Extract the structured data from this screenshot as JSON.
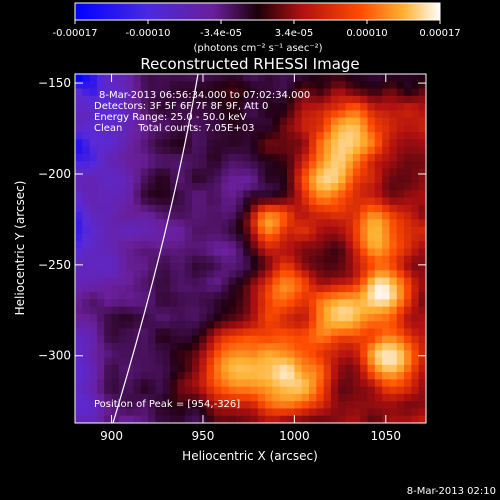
{
  "colorbar": {
    "tick_labels": [
      "-0.00017",
      "-0.00010",
      "-3.4e-05",
      "3.4e-05",
      "0.00010",
      "0.00017"
    ],
    "unit_label": "(photons cm⁻² s⁻¹ asec⁻²)",
    "range": [
      -0.00017,
      0.00017
    ],
    "colors": [
      "#0000ff",
      "#5a2ad8",
      "#6a1f9a",
      "#200010",
      "#b01010",
      "#ff4a00",
      "#ffb030",
      "#ffffff"
    ]
  },
  "title": "Reconstructed RHESSI Image",
  "info": {
    "line1": "8-Mar-2013 06:56:34.000 to 07:02:34.000",
    "line2": "Detectors: 3F 5F 6F 7F 8F 9F, Att 0",
    "line3": "Energy Range: 25.0 - 50.0 keV",
    "line4": "Clean     Total counts: 7.05E+03"
  },
  "peak_text": "Position of Peak = [954,-326]",
  "axes": {
    "x_label": "Heliocentric X (arcsec)",
    "y_label": "Heliocentric Y (arcsec)",
    "x_ticks": [
      900,
      950,
      1000,
      1050
    ],
    "y_ticks": [
      -150,
      -200,
      -250,
      -300
    ],
    "x_range": [
      880,
      1072
    ],
    "y_range": [
      -337,
      -145
    ]
  },
  "footer_date": "8-Mar-2013 02:10"
}
